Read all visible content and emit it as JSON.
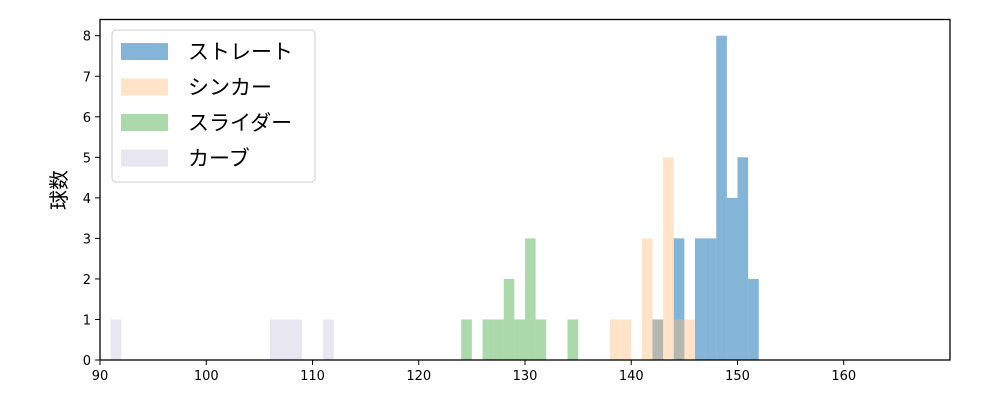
{
  "chart_data": {
    "type": "bar",
    "subtype": "histogram",
    "title": "",
    "xlabel": "",
    "ylabel": "球数",
    "xlim": [
      90,
      170
    ],
    "ylim": [
      0,
      8.4
    ],
    "xticks": [
      90,
      100,
      110,
      120,
      130,
      140,
      150,
      160
    ],
    "yticks": [
      0,
      1,
      2,
      3,
      4,
      5,
      6,
      7,
      8
    ],
    "grid": false,
    "legend_position": "top-left",
    "bin_width": 1,
    "series": [
      {
        "name": "ストレート",
        "color": "#1f77b4",
        "opacity": 0.55,
        "bins": [
          [
            142,
            1
          ],
          [
            144,
            3
          ],
          [
            146,
            3
          ],
          [
            147,
            3
          ],
          [
            148,
            8
          ],
          [
            149,
            4
          ],
          [
            150,
            5
          ],
          [
            151,
            2
          ]
        ]
      },
      {
        "name": "シンカー",
        "color": "#ffbb78",
        "opacity": 0.4,
        "bins": [
          [
            138,
            1
          ],
          [
            139,
            1
          ],
          [
            141,
            3
          ],
          [
            142,
            1
          ],
          [
            143,
            5
          ],
          [
            144,
            1
          ],
          [
            145,
            1
          ]
        ]
      },
      {
        "name": "スライダー",
        "color": "#2ca02c",
        "opacity": 0.4,
        "bins": [
          [
            124,
            1
          ],
          [
            126,
            1
          ],
          [
            127,
            1
          ],
          [
            128,
            2
          ],
          [
            129,
            1
          ],
          [
            130,
            3
          ],
          [
            131,
            1
          ],
          [
            134,
            1
          ]
        ]
      },
      {
        "name": "カーブ",
        "color": "#9e9ac8",
        "opacity": 0.25,
        "bins": [
          [
            91,
            1
          ],
          [
            106,
            1
          ],
          [
            107,
            1
          ],
          [
            108,
            1
          ],
          [
            111,
            1
          ]
        ]
      }
    ]
  }
}
